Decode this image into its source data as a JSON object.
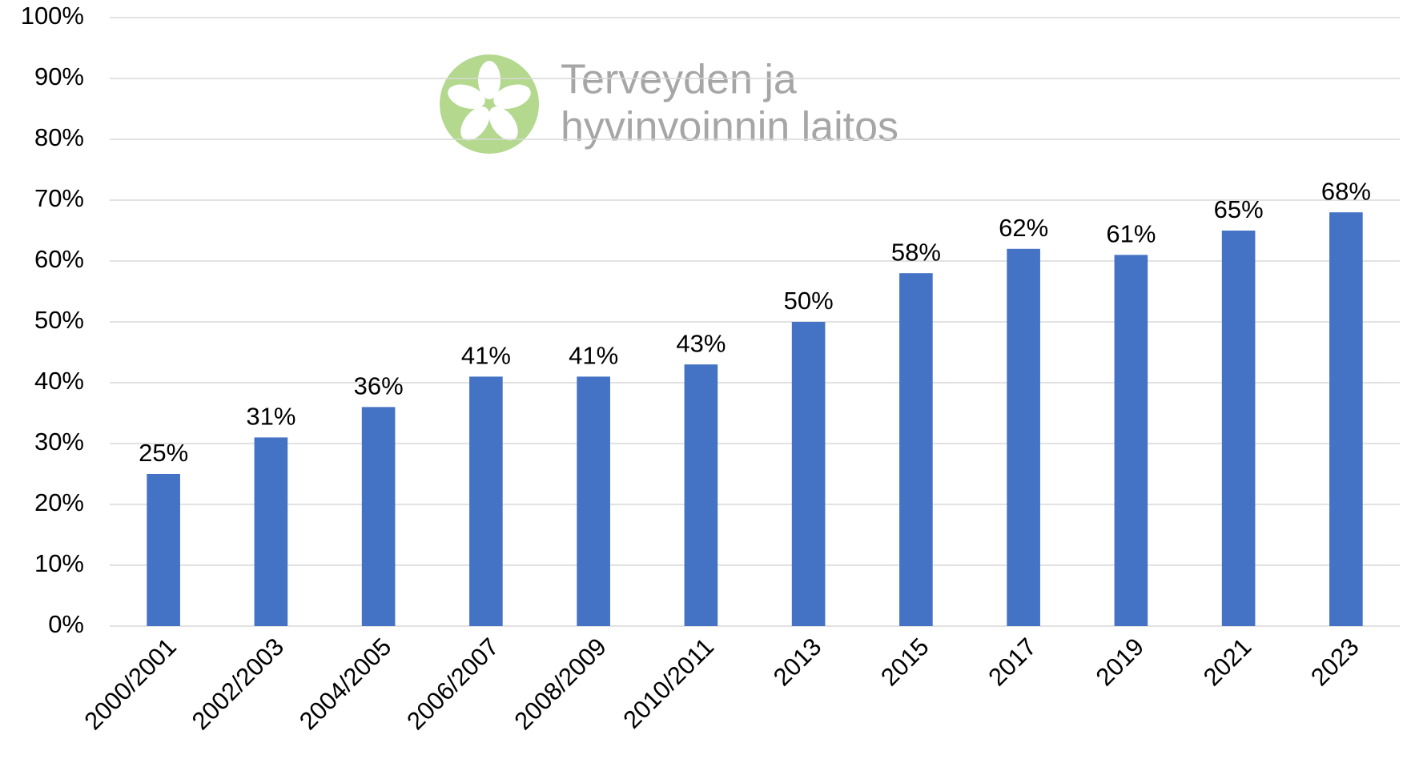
{
  "chart_data": {
    "type": "bar",
    "logo_text": [
      "Terveyden ja",
      "hyvinvoinnin laitos"
    ],
    "categories": [
      "2000/2001",
      "2002/2003",
      "2004/2005",
      "2006/2007",
      "2008/2009",
      "2010/2011",
      "2013",
      "2015",
      "2017",
      "2019",
      "2021",
      "2023"
    ],
    "values": [
      25,
      31,
      36,
      41,
      41,
      43,
      50,
      58,
      62,
      61,
      65,
      68
    ],
    "value_labels": [
      "25%",
      "31%",
      "36%",
      "41%",
      "41%",
      "43%",
      "50%",
      "58%",
      "62%",
      "61%",
      "65%",
      "68%"
    ],
    "color": "#4472c4",
    "ylim": [
      0,
      100
    ],
    "yticks": [
      {
        "value": 0,
        "label": "0%"
      },
      {
        "value": 10,
        "label": "10%"
      },
      {
        "value": 20,
        "label": "20%"
      },
      {
        "value": 30,
        "label": "30%"
      },
      {
        "value": 40,
        "label": "40%"
      },
      {
        "value": 50,
        "label": "50%"
      },
      {
        "value": 60,
        "label": "60%"
      },
      {
        "value": 70,
        "label": "70%"
      },
      {
        "value": 80,
        "label": "80%"
      },
      {
        "value": 90,
        "label": "90%"
      },
      {
        "value": 100,
        "label": "100%"
      }
    ],
    "grid": true
  }
}
